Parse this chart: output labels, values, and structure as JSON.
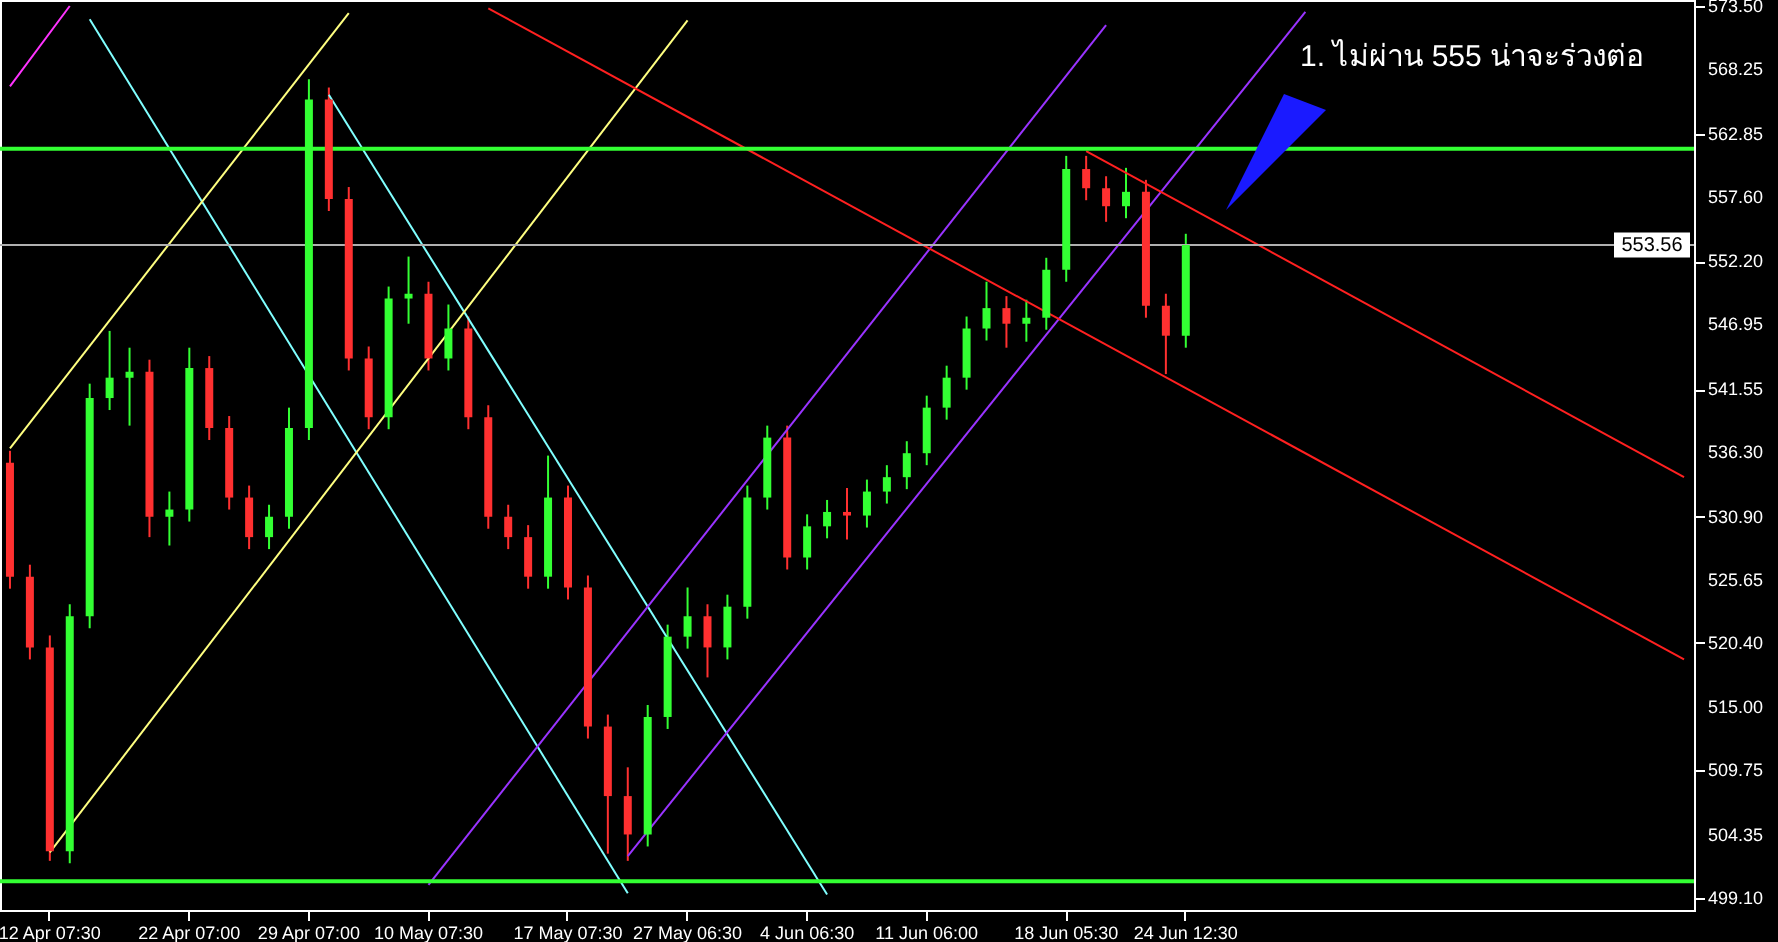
{
  "chart_data": {
    "type": "candlestick",
    "categories": [
      null,
      null,
      "12 Apr 07:30",
      null,
      null,
      null,
      null,
      null,
      null,
      "22 Apr 07:00",
      null,
      null,
      null,
      null,
      null,
      "29 Apr 07:00",
      null,
      null,
      null,
      null,
      null,
      "10 May 07:30",
      null,
      null,
      null,
      null,
      null,
      null,
      "17 May 07:30",
      null,
      null,
      null,
      null,
      null,
      "27 May 06:30",
      null,
      null,
      null,
      null,
      null,
      "4 Jun 06:30",
      null,
      null,
      null,
      null,
      null,
      "11 Jun 06:00",
      null,
      null,
      null,
      null,
      null,
      null,
      "18 Jun 05:30",
      null,
      null,
      null,
      null,
      null,
      "24 Jun 12:30",
      null,
      null,
      null,
      null,
      null,
      null,
      null,
      null,
      null,
      null,
      null,
      null,
      null,
      null,
      null,
      null,
      null,
      null,
      null,
      null,
      null,
      null,
      null,
      null,
      null
    ],
    "ohlc": [
      [
        535.4,
        536.4,
        524.9,
        525.9
      ],
      [
        525.9,
        526.9,
        519.0,
        520.0
      ],
      [
        520.0,
        521.0,
        502.2,
        503.0
      ],
      [
        503.0,
        523.6,
        502.0,
        522.6
      ],
      [
        522.6,
        542.0,
        521.6,
        540.8
      ],
      [
        540.8,
        546.4,
        539.8,
        542.5
      ],
      [
        542.5,
        545.0,
        538.5,
        543.0
      ],
      [
        543.0,
        544.0,
        529.2,
        530.9
      ],
      [
        530.9,
        533.0,
        528.5,
        531.5
      ],
      [
        531.5,
        545.0,
        530.5,
        543.3
      ],
      [
        543.3,
        544.3,
        537.3,
        538.3
      ],
      [
        538.3,
        539.3,
        531.5,
        532.5
      ],
      [
        532.5,
        533.5,
        528.2,
        529.2
      ],
      [
        529.2,
        531.9,
        528.2,
        530.9
      ],
      [
        530.9,
        540.0,
        529.9,
        538.3
      ],
      [
        538.3,
        567.4,
        537.3,
        565.7
      ],
      [
        565.7,
        566.7,
        556.4,
        557.4
      ],
      [
        557.4,
        558.4,
        543.1,
        544.1
      ],
      [
        544.1,
        545.1,
        538.2,
        539.2
      ],
      [
        539.2,
        550.1,
        538.2,
        549.1
      ],
      [
        549.1,
        552.6,
        547.0,
        549.5
      ],
      [
        549.5,
        550.5,
        543.1,
        544.1
      ],
      [
        544.1,
        548.6,
        543.1,
        546.6
      ],
      [
        546.6,
        547.6,
        538.2,
        539.2
      ],
      [
        539.2,
        540.2,
        529.9,
        530.9
      ],
      [
        530.9,
        531.9,
        528.2,
        529.2
      ],
      [
        529.2,
        530.2,
        524.9,
        525.9
      ],
      [
        525.9,
        536.0,
        524.9,
        532.5
      ],
      [
        532.5,
        533.5,
        524.0,
        525.0
      ],
      [
        525.0,
        526.0,
        512.4,
        513.4
      ],
      [
        513.4,
        514.4,
        502.8,
        507.6
      ],
      [
        507.6,
        510.0,
        502.2,
        504.4
      ],
      [
        504.4,
        515.2,
        503.4,
        514.2
      ],
      [
        514.2,
        521.9,
        513.2,
        520.9
      ],
      [
        520.9,
        525.0,
        519.9,
        522.6
      ],
      [
        522.6,
        523.6,
        517.5,
        520.0
      ],
      [
        520.0,
        524.4,
        519.0,
        523.4
      ],
      [
        523.4,
        533.5,
        522.4,
        532.5
      ],
      [
        532.5,
        538.5,
        531.5,
        537.5
      ],
      [
        537.5,
        538.5,
        526.5,
        527.5
      ],
      [
        527.5,
        531.1,
        526.5,
        530.1
      ],
      [
        530.1,
        532.3,
        529.1,
        531.3
      ],
      [
        531.3,
        533.3,
        529.0,
        531.0
      ],
      [
        531.0,
        534.0,
        530.0,
        533.0
      ],
      [
        533.0,
        535.2,
        532.0,
        534.2
      ],
      [
        534.2,
        537.2,
        533.2,
        536.2
      ],
      [
        536.2,
        541.0,
        535.2,
        540.0
      ],
      [
        540.0,
        543.5,
        539.0,
        542.5
      ],
      [
        542.5,
        547.6,
        541.5,
        546.6
      ],
      [
        546.6,
        550.5,
        545.6,
        548.3
      ],
      [
        548.3,
        549.3,
        545.0,
        547.0
      ],
      [
        547.0,
        549.0,
        545.5,
        547.5
      ],
      [
        547.5,
        552.5,
        546.5,
        551.5
      ],
      [
        551.5,
        561.0,
        550.5,
        559.9
      ],
      [
        559.9,
        561.0,
        557.3,
        558.3
      ],
      [
        558.3,
        559.3,
        555.5,
        556.8
      ],
      [
        556.8,
        560.0,
        555.8,
        558.0
      ],
      [
        558.0,
        559.0,
        547.5,
        548.5
      ],
      [
        548.5,
        549.5,
        542.8,
        546.0
      ],
      [
        546.0,
        554.5,
        545.0,
        553.56
      ],
      null,
      null,
      null,
      null,
      null,
      null,
      null,
      null,
      null,
      null,
      null,
      null,
      null,
      null,
      null,
      null,
      null,
      null,
      null,
      null,
      null,
      null,
      null,
      null,
      null
    ],
    "colors": [
      "#ff3030",
      "#ff3030",
      "#ff3030",
      "#33ff33",
      "#33ff33",
      "#33ff33",
      "#33ff33",
      "#ff3030",
      "#33ff33",
      "#33ff33",
      "#ff3030",
      "#ff3030",
      "#ff3030",
      "#33ff33",
      "#33ff33",
      "#33ff33",
      "#ff3030",
      "#ff3030",
      "#ff3030",
      "#33ff33",
      "#33ff33",
      "#ff3030",
      "#33ff33",
      "#ff3030",
      "#ff3030",
      "#ff3030",
      "#ff3030",
      "#33ff33",
      "#ff3030",
      "#ff3030",
      "#ff3030",
      "#ff3030",
      "#33ff33",
      "#33ff33",
      "#33ff33",
      "#ff3030",
      "#33ff33",
      "#33ff33",
      "#33ff33",
      "#ff3030",
      "#33ff33",
      "#33ff33",
      "#ff3030",
      "#33ff33",
      "#33ff33",
      "#33ff33",
      "#33ff33",
      "#33ff33",
      "#33ff33",
      "#33ff33",
      "#ff3030",
      "#33ff33",
      "#33ff33",
      "#33ff33",
      "#ff3030",
      "#ff3030",
      "#33ff33",
      "#ff3030",
      "#ff3030",
      "#33ff33",
      null,
      null,
      null,
      null,
      null,
      null,
      null,
      null,
      null,
      null,
      null,
      null,
      null,
      null,
      null,
      null,
      null,
      null,
      null,
      null,
      null,
      null,
      null,
      null,
      null
    ],
    "series": [
      {
        "type": "line",
        "color": "#ff33ff",
        "values": [
          566.8,
          null,
          null,
          573.5,
          null,
          null,
          null,
          null,
          null,
          null,
          null,
          null,
          null,
          null,
          null,
          null,
          null,
          null,
          null,
          null,
          null,
          null,
          null,
          null,
          null,
          null,
          null,
          null,
          null,
          null,
          null,
          null,
          null,
          null,
          null,
          null,
          null,
          null,
          null,
          null,
          null,
          null,
          null,
          null,
          null,
          null,
          null,
          null,
          null,
          null,
          null,
          null,
          null,
          null,
          null,
          null,
          null,
          null,
          null,
          null,
          null,
          null,
          null,
          null,
          null,
          null,
          null,
          null,
          null,
          null,
          null,
          null,
          null,
          null,
          null,
          null,
          null,
          null,
          null,
          null,
          null,
          null,
          null,
          null,
          null
        ]
      },
      {
        "type": "line",
        "color": "#80ffff",
        "values": [
          null,
          null,
          null,
          null,
          572.4,
          null,
          null,
          null,
          null,
          null,
          null,
          null,
          null,
          null,
          null,
          null,
          null,
          null,
          null,
          null,
          null,
          null,
          null,
          null,
          null,
          null,
          null,
          null,
          null,
          null,
          null,
          499.5,
          null,
          null,
          null,
          null,
          null,
          null,
          null,
          null,
          null,
          null,
          null,
          null,
          null,
          null,
          null,
          null,
          null,
          null,
          null,
          null,
          null,
          null,
          null,
          null,
          null,
          null,
          null,
          null,
          null,
          null,
          null,
          null,
          null,
          null,
          null,
          null,
          null,
          null,
          null,
          null,
          null,
          null,
          null,
          null,
          null,
          null,
          null,
          null,
          null,
          null,
          null,
          null,
          null
        ]
      },
      {
        "type": "line",
        "color": "#80ffff",
        "values": [
          null,
          null,
          null,
          null,
          null,
          null,
          null,
          null,
          null,
          null,
          null,
          null,
          null,
          null,
          null,
          null,
          566.1,
          null,
          null,
          null,
          null,
          null,
          null,
          null,
          null,
          null,
          null,
          null,
          null,
          null,
          null,
          null,
          null,
          null,
          null,
          null,
          null,
          null,
          null,
          null,
          null,
          499.4,
          null,
          null,
          null,
          null,
          null,
          null,
          null,
          null,
          null,
          null,
          null,
          null,
          null,
          null,
          null,
          null,
          null,
          null,
          null,
          null,
          null,
          null,
          null,
          null,
          null,
          null,
          null,
          null,
          null,
          null,
          null,
          null,
          null,
          null,
          null,
          null,
          null,
          null,
          null,
          null,
          null,
          null,
          null
        ]
      },
      {
        "type": "line",
        "color": "#ffff80",
        "values": [
          536.6,
          null,
          null,
          null,
          null,
          null,
          null,
          null,
          null,
          null,
          null,
          null,
          null,
          null,
          null,
          null,
          null,
          572.9,
          null,
          null,
          null,
          null,
          null,
          null,
          null,
          null,
          null,
          null,
          null,
          null,
          null,
          null,
          null,
          null,
          null,
          null,
          null,
          null,
          null,
          null,
          null,
          null,
          null,
          null,
          null,
          null,
          null,
          null,
          null,
          null,
          null,
          null,
          null,
          null,
          null,
          null,
          null,
          null,
          null,
          null,
          null,
          null,
          null,
          null,
          null,
          null,
          null,
          null,
          null,
          null,
          null,
          null,
          null,
          null,
          null,
          null,
          null,
          null,
          null,
          null,
          null,
          null,
          null,
          null,
          null
        ]
      },
      {
        "type": "line",
        "color": "#ffff80",
        "values": [
          null,
          null,
          502.9,
          null,
          null,
          null,
          null,
          null,
          null,
          null,
          null,
          null,
          null,
          null,
          null,
          null,
          null,
          null,
          null,
          null,
          null,
          null,
          null,
          null,
          null,
          null,
          null,
          null,
          null,
          null,
          null,
          null,
          null,
          null,
          572.3,
          null,
          null,
          null,
          null,
          null,
          null,
          null,
          null,
          null,
          null,
          null,
          null,
          null,
          null,
          null,
          null,
          null,
          null,
          null,
          null,
          null,
          null,
          null,
          null,
          null,
          null,
          null,
          null,
          null,
          null,
          null,
          null,
          null,
          null,
          null,
          null,
          null,
          null,
          null,
          null,
          null,
          null,
          null,
          null,
          null,
          null,
          null,
          null,
          null,
          null
        ]
      },
      {
        "type": "line",
        "color": "#9933ff",
        "values": [
          null,
          null,
          null,
          null,
          null,
          null,
          null,
          null,
          null,
          null,
          null,
          null,
          null,
          null,
          null,
          null,
          null,
          null,
          null,
          null,
          null,
          500.2,
          null,
          null,
          null,
          null,
          null,
          null,
          null,
          null,
          null,
          null,
          null,
          null,
          null,
          null,
          null,
          null,
          null,
          null,
          null,
          null,
          null,
          null,
          null,
          null,
          null,
          null,
          null,
          null,
          null,
          null,
          null,
          null,
          null,
          571.9,
          null,
          null,
          null,
          null,
          null,
          null,
          null,
          null,
          null,
          null,
          null,
          null,
          null,
          null,
          null,
          null,
          null,
          null,
          null,
          null,
          null,
          null,
          null,
          null,
          null,
          null,
          null,
          null,
          null
        ]
      },
      {
        "type": "line",
        "color": "#9933ff",
        "values": [
          null,
          null,
          null,
          null,
          null,
          null,
          null,
          null,
          null,
          null,
          null,
          null,
          null,
          null,
          null,
          null,
          null,
          null,
          null,
          null,
          null,
          null,
          null,
          null,
          null,
          null,
          null,
          null,
          null,
          null,
          null,
          502.6,
          null,
          null,
          null,
          null,
          null,
          null,
          null,
          null,
          null,
          null,
          null,
          null,
          null,
          null,
          null,
          null,
          null,
          null,
          null,
          null,
          null,
          null,
          null,
          null,
          null,
          null,
          null,
          null,
          null,
          null,
          null,
          null,
          null,
          573.0,
          null,
          null,
          null,
          null,
          null,
          null,
          null,
          null,
          null,
          null,
          null,
          null,
          null,
          null,
          null,
          null,
          null,
          null,
          null
        ]
      },
      {
        "type": "line",
        "color": "#ff2020",
        "values": [
          null,
          null,
          null,
          null,
          null,
          null,
          null,
          null,
          null,
          null,
          null,
          null,
          null,
          null,
          null,
          null,
          null,
          null,
          null,
          null,
          null,
          null,
          null,
          null,
          573.3,
          null,
          null,
          null,
          null,
          null,
          null,
          null,
          null,
          null,
          null,
          null,
          null,
          null,
          null,
          null,
          null,
          null,
          null,
          null,
          null,
          null,
          null,
          null,
          null,
          null,
          null,
          null,
          null,
          null,
          null,
          null,
          null,
          null,
          null,
          null,
          null,
          null,
          null,
          null,
          null,
          null,
          null,
          null,
          null,
          null,
          null,
          null,
          null,
          null,
          null,
          null,
          null,
          null,
          null,
          null,
          null,
          null,
          null,
          null,
          519.0
        ]
      },
      {
        "type": "line",
        "color": "#ff2020",
        "values": [
          null,
          null,
          null,
          null,
          null,
          null,
          null,
          null,
          null,
          null,
          null,
          null,
          null,
          null,
          null,
          null,
          null,
          null,
          null,
          null,
          null,
          null,
          null,
          null,
          null,
          null,
          null,
          null,
          null,
          null,
          null,
          null,
          null,
          null,
          null,
          null,
          null,
          null,
          null,
          null,
          null,
          null,
          null,
          null,
          null,
          null,
          null,
          null,
          null,
          null,
          null,
          null,
          null,
          null,
          561.4,
          null,
          null,
          null,
          null,
          null,
          null,
          null,
          null,
          null,
          null,
          null,
          null,
          null,
          null,
          null,
          null,
          null,
          null,
          null,
          null,
          null,
          null,
          null,
          null,
          null,
          null,
          null,
          null,
          null,
          534.2
        ]
      }
    ],
    "ref_lines": [
      {
        "axis": "y",
        "value": 561.6,
        "color": "#33ff33"
      },
      {
        "axis": "y",
        "value": 500.5,
        "color": "#33ff33"
      },
      {
        "axis": "y",
        "value": 553.56,
        "color": "#b0b0b0",
        "label": "553.56"
      }
    ],
    "annotations": [
      "1. ไม่ผ่าน 555 น่าจะร่วงต่อ"
    ],
    "ylim": [
      498.1,
      574.0
    ],
    "yticks": [
      {
        "value": 499.1,
        "label": "499.10"
      },
      504.35,
      509.75,
      {
        "value": 515.0,
        "label": "515.00"
      },
      {
        "value": 520.4,
        "label": "520.40"
      },
      525.65,
      {
        "value": 530.9,
        "label": "530.90"
      },
      {
        "value": 536.3,
        "label": "536.30"
      },
      541.55,
      546.95,
      {
        "value": 552.2,
        "label": "552.20"
      },
      {
        "value": 557.6,
        "label": "557.60"
      },
      562.85,
      568.25,
      {
        "value": 573.5,
        "label": "573.50"
      }
    ],
    "grid": false
  }
}
